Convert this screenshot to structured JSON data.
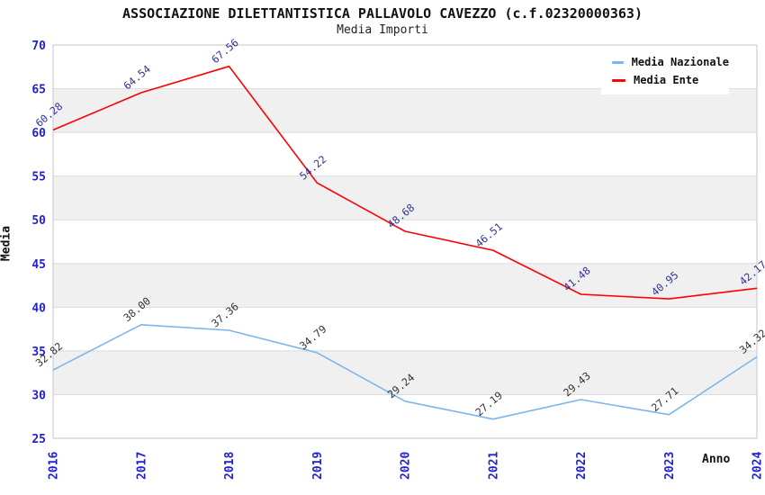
{
  "header": {
    "title": "ASSOCIAZIONE DILETTANTISTICA PALLAVOLO CAVEZZO (c.f.02320000363)",
    "subtitle": "Media Importi"
  },
  "chart_data": {
    "type": "line",
    "x": [
      2016,
      2017,
      2018,
      2019,
      2020,
      2021,
      2022,
      2023,
      2024
    ],
    "series": [
      {
        "name": "Media Nazionale",
        "color": "#7cb5ec",
        "label_color": "#333333",
        "values": [
          32.82,
          38.0,
          37.36,
          34.79,
          29.24,
          27.19,
          29.43,
          27.71,
          34.32
        ]
      },
      {
        "name": "Media Ente",
        "color": "#ff0000",
        "label_color": "#333399",
        "values": [
          60.28,
          64.54,
          67.56,
          54.22,
          48.68,
          46.51,
          41.48,
          40.95,
          42.17
        ]
      }
    ],
    "xlabel": "Anno",
    "ylabel": "Media",
    "ylim": [
      25,
      70
    ],
    "ytick_step": 5,
    "grid": true,
    "band_color": "#f0f0f0",
    "grid_color": "#dcdcdc",
    "border_color": "#c6c6c6",
    "tick_color": "#2222cc",
    "legend_position": "top-right"
  }
}
